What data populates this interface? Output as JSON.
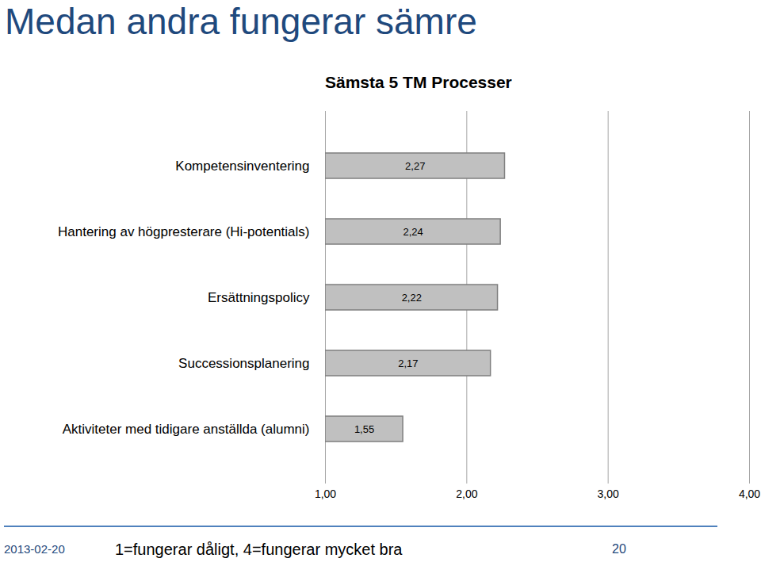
{
  "slide": {
    "title": "Medan andra fungerar sämre",
    "date": "2013-02-20",
    "note": "1=fungerar dåligt, 4=fungerar mycket bra",
    "page": 20
  },
  "chart_data": {
    "type": "bar",
    "orientation": "horizontal",
    "title": "Sämsta 5 TM Processer",
    "categories": [
      "Kompetensinventering",
      "Hantering av högpresterare (Hi-potentials)",
      "Ersättningspolicy",
      "Successionsplanering",
      "Aktiviteter med tidigare anställda (alumni)"
    ],
    "values": [
      2.27,
      2.24,
      2.22,
      2.17,
      1.55
    ],
    "value_labels": [
      "2,27",
      "2,24",
      "2,22",
      "2,17",
      "1,55"
    ],
    "data_labels": true,
    "color": "#c0c0c0",
    "xlim": [
      1,
      4
    ],
    "xticks": [
      {
        "value": 1,
        "label": "1,00"
      },
      {
        "value": 2,
        "label": "2,00"
      },
      {
        "value": 3,
        "label": "3,00"
      },
      {
        "value": 4,
        "label": "4,00"
      }
    ],
    "grid": true
  }
}
